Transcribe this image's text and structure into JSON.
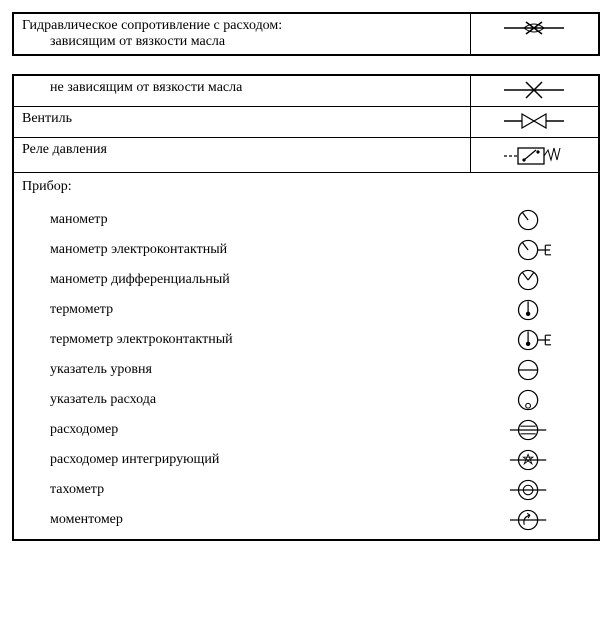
{
  "colors": {
    "line": "#000000",
    "bg": "#ffffff"
  },
  "top_table": {
    "rows": [
      {
        "label_main": "Гидравлическое сопротивление с расходом:",
        "label_sub": "зависящим от  вязкости масла",
        "symbol": "restrictor-viscous"
      }
    ]
  },
  "main_table": {
    "rows": [
      {
        "label": "не зависящим от вязкости масла",
        "indent": true,
        "symbol": "restrictor-nonviscous"
      },
      {
        "label": "Вентиль",
        "indent": false,
        "symbol": "valve"
      },
      {
        "label": "Реле давления",
        "indent": false,
        "symbol": "pressure-relay"
      }
    ],
    "instruments_header": "Прибор:",
    "instruments": [
      {
        "label": "манометр",
        "symbol": "gauge-pressure"
      },
      {
        "label": "манометр электроконтактный",
        "symbol": "gauge-pressure-econtact"
      },
      {
        "label": "манометр дифференциальный",
        "symbol": "gauge-pressure-diff"
      },
      {
        "label": "термометр",
        "symbol": "gauge-thermo"
      },
      {
        "label": "термометр электроконтактный",
        "symbol": "gauge-thermo-econtact"
      },
      {
        "label": "указатель уровня",
        "symbol": "gauge-level"
      },
      {
        "label": "указатель расхода",
        "symbol": "gauge-flow-indicator"
      },
      {
        "label": "расходомер",
        "symbol": "gauge-flowmeter"
      },
      {
        "label": "расходомер интегрирующий",
        "symbol": "gauge-flowmeter-int"
      },
      {
        "label": "тахометр",
        "symbol": "gauge-tacho"
      },
      {
        "label": "моментомер",
        "symbol": "gauge-torque"
      }
    ],
    "instrument_row_height": 30
  }
}
